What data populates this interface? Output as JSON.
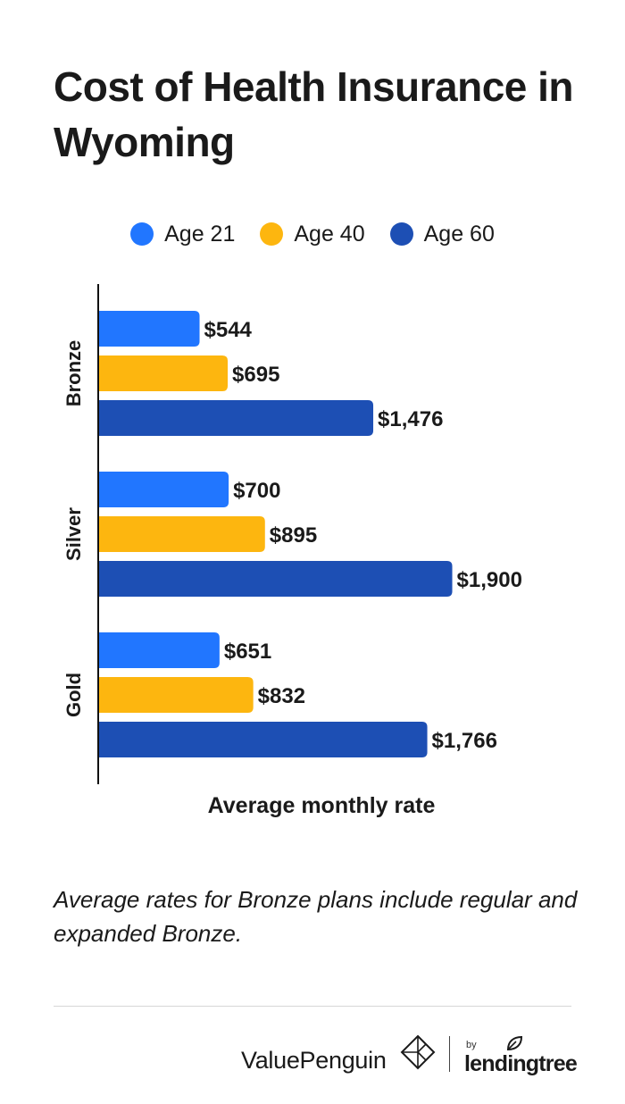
{
  "title": "Cost of Health Insurance in Wyoming",
  "colors": {
    "age21": "#2176ff",
    "age40": "#fdb60f",
    "age60": "#1d4fb4",
    "axis": "#111111",
    "text": "#1a1a1a"
  },
  "chart_data": {
    "type": "bar",
    "orientation": "horizontal",
    "title": "Cost of Health Insurance in Wyoming",
    "xlabel": "Average monthly rate",
    "ylabel": "",
    "categories": [
      "Bronze",
      "Silver",
      "Gold"
    ],
    "series": [
      {
        "name": "Age 21",
        "values": [
          544,
          700,
          651
        ],
        "labels": [
          "$544",
          "$700",
          "$651"
        ]
      },
      {
        "name": "Age 40",
        "values": [
          695,
          895,
          832
        ],
        "labels": [
          "$695",
          "$895",
          "$832"
        ]
      },
      {
        "name": "Age 60",
        "values": [
          1476,
          1900,
          1766
        ],
        "labels": [
          "$1,476",
          "$1,900",
          "$1,766"
        ]
      }
    ],
    "xlim": [
      0,
      2300
    ],
    "grid": false,
    "legend_position": "top"
  },
  "note": "Average rates for Bronze plans include regular and expanded Bronze.",
  "footer": {
    "brand": "ValuePenguin",
    "by": "by",
    "partner": "lendingtree",
    "logo_icon": "valuepenguin-diamond-icon",
    "partner_icon": "leaf-icon"
  }
}
